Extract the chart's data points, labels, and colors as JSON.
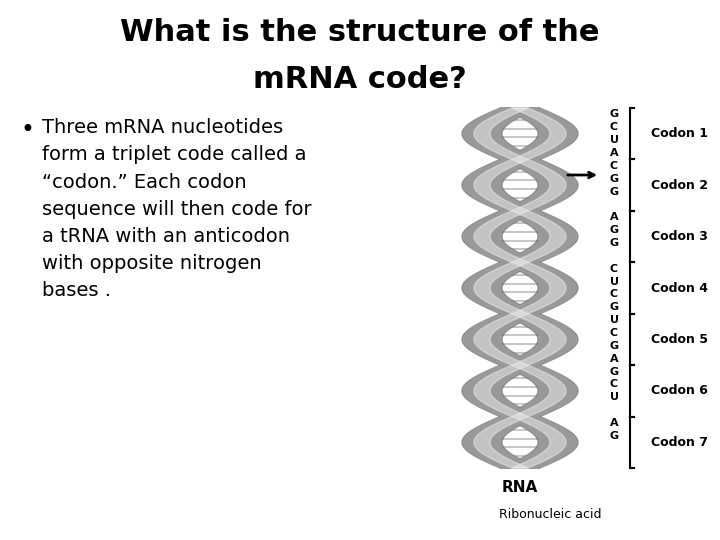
{
  "title_line1": "What is the structure of the",
  "title_line2": "mRNA code?",
  "bullet_text": "Three mRNA nucleotides\nform a triplet code called a\n“codon.” Each codon\nsequence will then code for\na tRNA with an anticodon\nwith opposite nitrogen\nbases .",
  "rna_label": "RNA",
  "ribonucleic_label": "Ribonucleic acid",
  "codon_labels": [
    "Codon 1",
    "Codon 2",
    "Codon 3",
    "Codon 4",
    "Codon 5",
    "Codon 6",
    "Codon 7"
  ],
  "codon_nuc": [
    "G\nC\nU\nA",
    "C\nG\nG\n ",
    "A\nG\nG\n ",
    "C\nU\nC\nG",
    "U\nC\nG\nA",
    "G\nC\nU\n ",
    "A\nG\n \n "
  ],
  "background_color": "#ffffff",
  "title_fontsize": 22,
  "bullet_fontsize": 14,
  "text_color": "#000000",
  "helix_color": "#999999",
  "helix_dark": "#666666"
}
